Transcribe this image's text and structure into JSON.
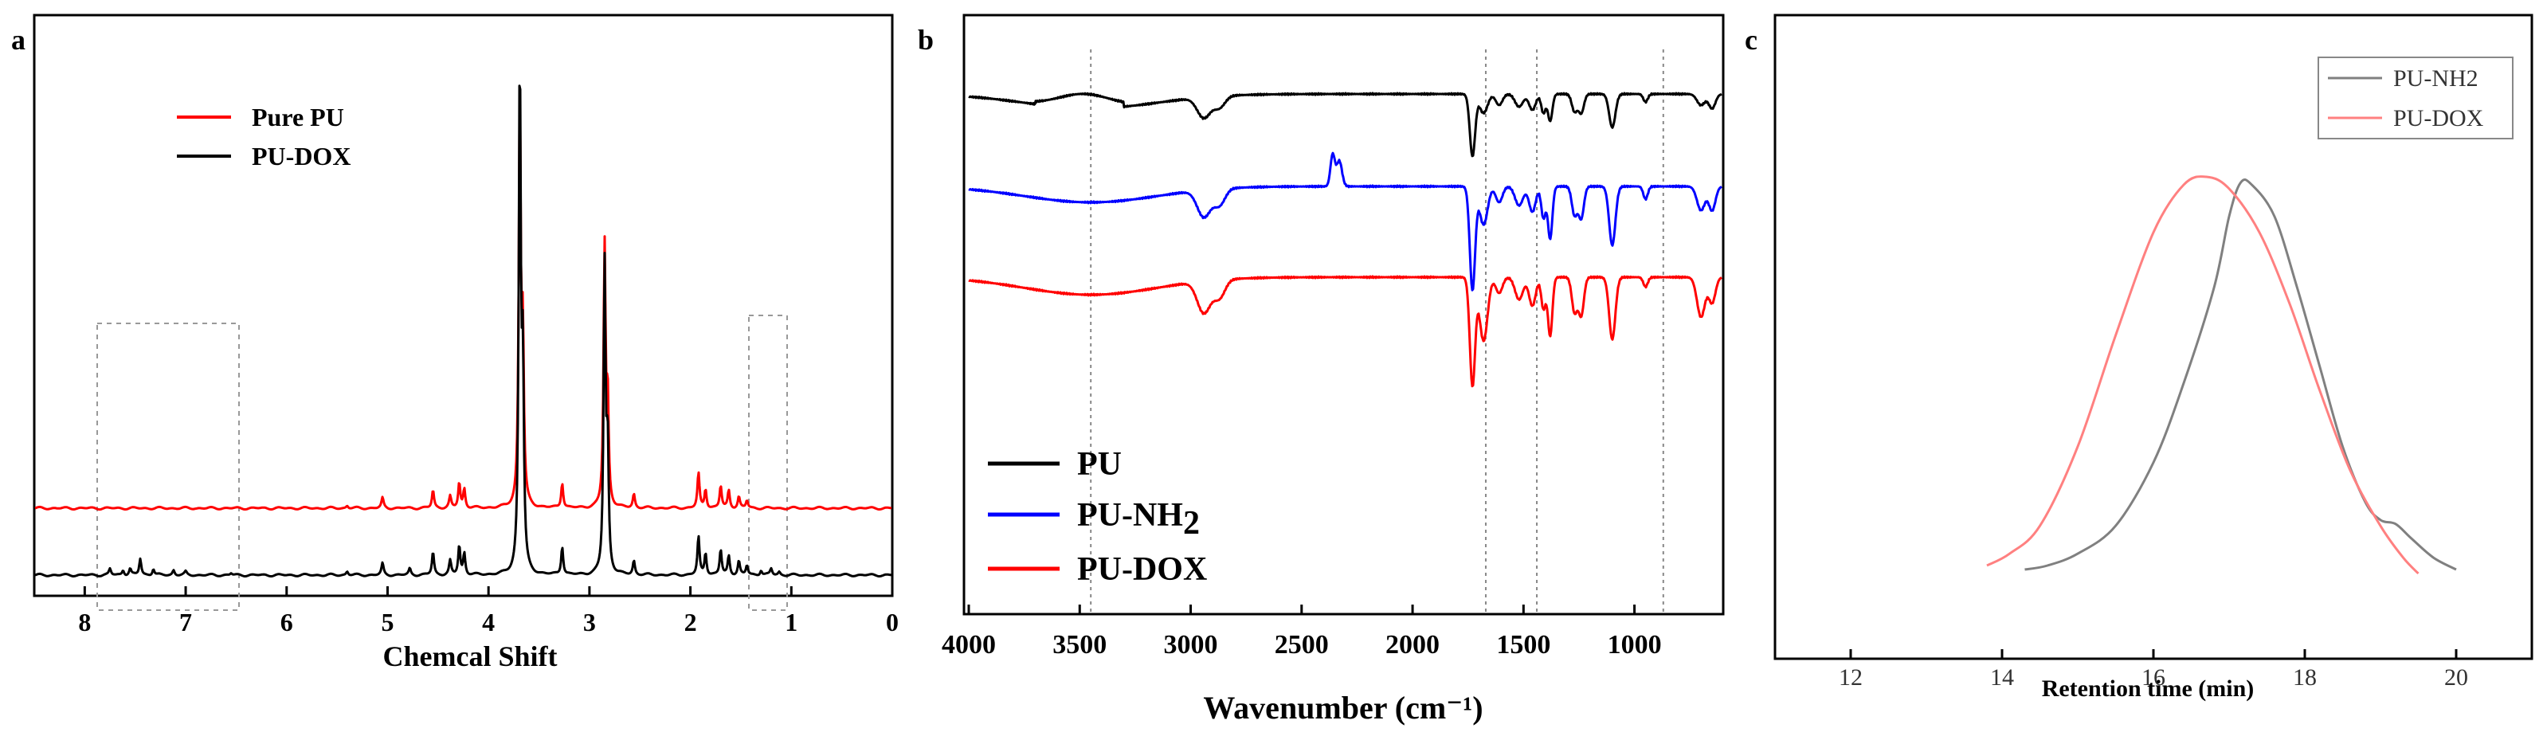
{
  "figure": {
    "panel_labels": [
      "a",
      "b",
      "c"
    ]
  },
  "chart_data": [
    {
      "panel": "a",
      "type": "line",
      "title": "",
      "xlabel": "Chemcal Shift",
      "ylabel": "",
      "xlim": [
        8.5,
        0
      ],
      "xticks": [
        8,
        7,
        6,
        5,
        4,
        3,
        2,
        1,
        0
      ],
      "legend": [
        "Pure PU",
        "PU-DOX"
      ],
      "legend_position": "top-left",
      "highlight_regions_ppm": [
        [
          8.1,
          6.7
        ],
        [
          1.45,
          1.1
        ]
      ],
      "series": [
        {
          "name": "Pure PU",
          "color": "#ff0000",
          "offset": 1.05,
          "peaks": [
            [
              5.4,
              0.04
            ],
            [
              5.05,
              0.16
            ],
            [
              4.55,
              0.28
            ],
            [
              4.38,
              0.18
            ],
            [
              4.29,
              0.4
            ],
            [
              4.24,
              0.3
            ],
            [
              3.69,
              6.2
            ],
            [
              3.66,
              2.5
            ],
            [
              3.27,
              0.4
            ],
            [
              2.85,
              4.05
            ],
            [
              2.82,
              1.6
            ],
            [
              2.56,
              0.22
            ],
            [
              1.92,
              0.55
            ],
            [
              1.85,
              0.3
            ],
            [
              1.7,
              0.35
            ],
            [
              1.62,
              0.28
            ],
            [
              1.52,
              0.18
            ],
            [
              1.44,
              0.12
            ]
          ]
        },
        {
          "name": "PU-DOX",
          "color": "#000000",
          "offset": 0,
          "peaks": [
            [
              7.75,
              0.1
            ],
            [
              7.62,
              0.08
            ],
            [
              7.55,
              0.1
            ],
            [
              7.45,
              0.26
            ],
            [
              7.32,
              0.1
            ],
            [
              7.12,
              0.08
            ],
            [
              7.0,
              0.05
            ],
            [
              6.55,
              0.03
            ],
            [
              5.4,
              0.06
            ],
            [
              5.05,
              0.18
            ],
            [
              4.78,
              0.1
            ],
            [
              4.55,
              0.36
            ],
            [
              4.38,
              0.22
            ],
            [
              4.29,
              0.46
            ],
            [
              4.24,
              0.34
            ],
            [
              3.69,
              8.0
            ],
            [
              3.66,
              3.0
            ],
            [
              3.27,
              0.45
            ],
            [
              2.85,
              4.8
            ],
            [
              2.82,
              1.9
            ],
            [
              2.56,
              0.22
            ],
            [
              1.92,
              0.6
            ],
            [
              1.85,
              0.35
            ],
            [
              1.7,
              0.4
            ],
            [
              1.62,
              0.3
            ],
            [
              1.52,
              0.22
            ],
            [
              1.44,
              0.15
            ],
            [
              1.3,
              0.08
            ],
            [
              1.2,
              0.1
            ],
            [
              1.12,
              0.05
            ]
          ]
        }
      ]
    },
    {
      "panel": "b",
      "type": "line",
      "title": "",
      "xlabel": "Wavenumber (cm⁻¹)",
      "ylabel": "",
      "xlim": [
        4000,
        600
      ],
      "xticks": [
        4000,
        3500,
        3000,
        2500,
        2000,
        1500,
        1000
      ],
      "reference_lines": [
        3450,
        1670,
        1440,
        870
      ],
      "legend_position": "bottom-left",
      "legend": [
        {
          "label": "PU",
          "color": "#000000"
        },
        {
          "label": "PU-NH",
          "subscript": "2",
          "color": "#0000ff"
        },
        {
          "label": "PU-DOX",
          "color": "#ff0000"
        }
      ],
      "series": [
        {
          "name": "PU",
          "color": "#000000",
          "offset": 0,
          "bands": [
            [
              3450,
              300,
              0.9
            ],
            [
              2940,
              30,
              1.3
            ],
            [
              2870,
              25,
              0.7
            ],
            [
              1730,
              12,
              3.9
            ],
            [
              1680,
              18,
              1.2
            ],
            [
              1610,
              15,
              0.7
            ],
            [
              1520,
              18,
              0.8
            ],
            [
              1460,
              15,
              1.0
            ],
            [
              1410,
              10,
              1.2
            ],
            [
              1380,
              10,
              1.7
            ],
            [
              1270,
              12,
              1.1
            ],
            [
              1240,
              12,
              1.2
            ],
            [
              1100,
              14,
              2.1
            ],
            [
              950,
              10,
              0.5
            ],
            [
              700,
              18,
              0.7
            ],
            [
              650,
              15,
              0.9
            ]
          ]
        },
        {
          "name": "PU-NH2",
          "color": "#0000ff",
          "offset": 5.8,
          "bands": [
            [
              3450,
              300,
              1.0
            ],
            [
              2940,
              30,
              1.7
            ],
            [
              2870,
              25,
              1.0
            ],
            [
              2360,
              10,
              -2.0
            ],
            [
              2330,
              12,
              -1.6
            ],
            [
              1730,
              12,
              6.5
            ],
            [
              1680,
              18,
              2.4
            ],
            [
              1610,
              15,
              1.0
            ],
            [
              1520,
              18,
              1.2
            ],
            [
              1460,
              15,
              1.6
            ],
            [
              1410,
              10,
              2.0
            ],
            [
              1380,
              10,
              3.3
            ],
            [
              1270,
              12,
              1.8
            ],
            [
              1240,
              12,
              2.0
            ],
            [
              1100,
              14,
              3.7
            ],
            [
              950,
              10,
              0.8
            ],
            [
              700,
              18,
              1.5
            ],
            [
              650,
              15,
              1.5
            ]
          ]
        },
        {
          "name": "PU-DOX",
          "color": "#ff0000",
          "offset": 11.5,
          "bands": [
            [
              3450,
              300,
              1.1
            ],
            [
              2940,
              30,
              2.0
            ],
            [
              2870,
              25,
              1.1
            ],
            [
              1730,
              12,
              6.8
            ],
            [
              1680,
              18,
              4.0
            ],
            [
              1610,
              15,
              1.0
            ],
            [
              1520,
              18,
              1.4
            ],
            [
              1460,
              15,
              1.8
            ],
            [
              1410,
              10,
              2.0
            ],
            [
              1380,
              10,
              3.7
            ],
            [
              1270,
              12,
              2.2
            ],
            [
              1240,
              12,
              2.4
            ],
            [
              1100,
              14,
              3.9
            ],
            [
              950,
              10,
              0.6
            ],
            [
              700,
              18,
              2.5
            ],
            [
              650,
              15,
              1.6
            ]
          ]
        }
      ]
    },
    {
      "panel": "c",
      "type": "line",
      "title": "",
      "xlabel": "Retention time (min)",
      "ylabel": "",
      "xlim": [
        11,
        21
      ],
      "xticks": [
        12,
        14,
        16,
        18,
        20
      ],
      "legend_position": "top-right",
      "series": [
        {
          "name": "PU-NH2",
          "color": "#808080",
          "points": [
            [
              14.3,
              0.01
            ],
            [
              14.6,
              0.02
            ],
            [
              15.0,
              0.05
            ],
            [
              15.5,
              0.12
            ],
            [
              16.0,
              0.28
            ],
            [
              16.4,
              0.48
            ],
            [
              16.8,
              0.72
            ],
            [
              17.0,
              0.9
            ],
            [
              17.15,
              0.985
            ],
            [
              17.3,
              0.98
            ],
            [
              17.6,
              0.9
            ],
            [
              17.9,
              0.72
            ],
            [
              18.2,
              0.52
            ],
            [
              18.5,
              0.32
            ],
            [
              18.8,
              0.18
            ],
            [
              19.0,
              0.135
            ],
            [
              19.2,
              0.125
            ],
            [
              19.4,
              0.09
            ],
            [
              19.7,
              0.04
            ],
            [
              20.0,
              0.01
            ]
          ]
        },
        {
          "name": "PU-DOX",
          "color": "#ff8080",
          "points": [
            [
              13.8,
              0.02
            ],
            [
              14.1,
              0.05
            ],
            [
              14.5,
              0.12
            ],
            [
              15.0,
              0.32
            ],
            [
              15.5,
              0.6
            ],
            [
              16.0,
              0.86
            ],
            [
              16.4,
              0.98
            ],
            [
              16.7,
              1.0
            ],
            [
              17.0,
              0.97
            ],
            [
              17.4,
              0.86
            ],
            [
              17.8,
              0.68
            ],
            [
              18.2,
              0.46
            ],
            [
              18.6,
              0.26
            ],
            [
              19.0,
              0.12
            ],
            [
              19.3,
              0.04
            ],
            [
              19.5,
              0.0
            ]
          ]
        }
      ]
    }
  ]
}
